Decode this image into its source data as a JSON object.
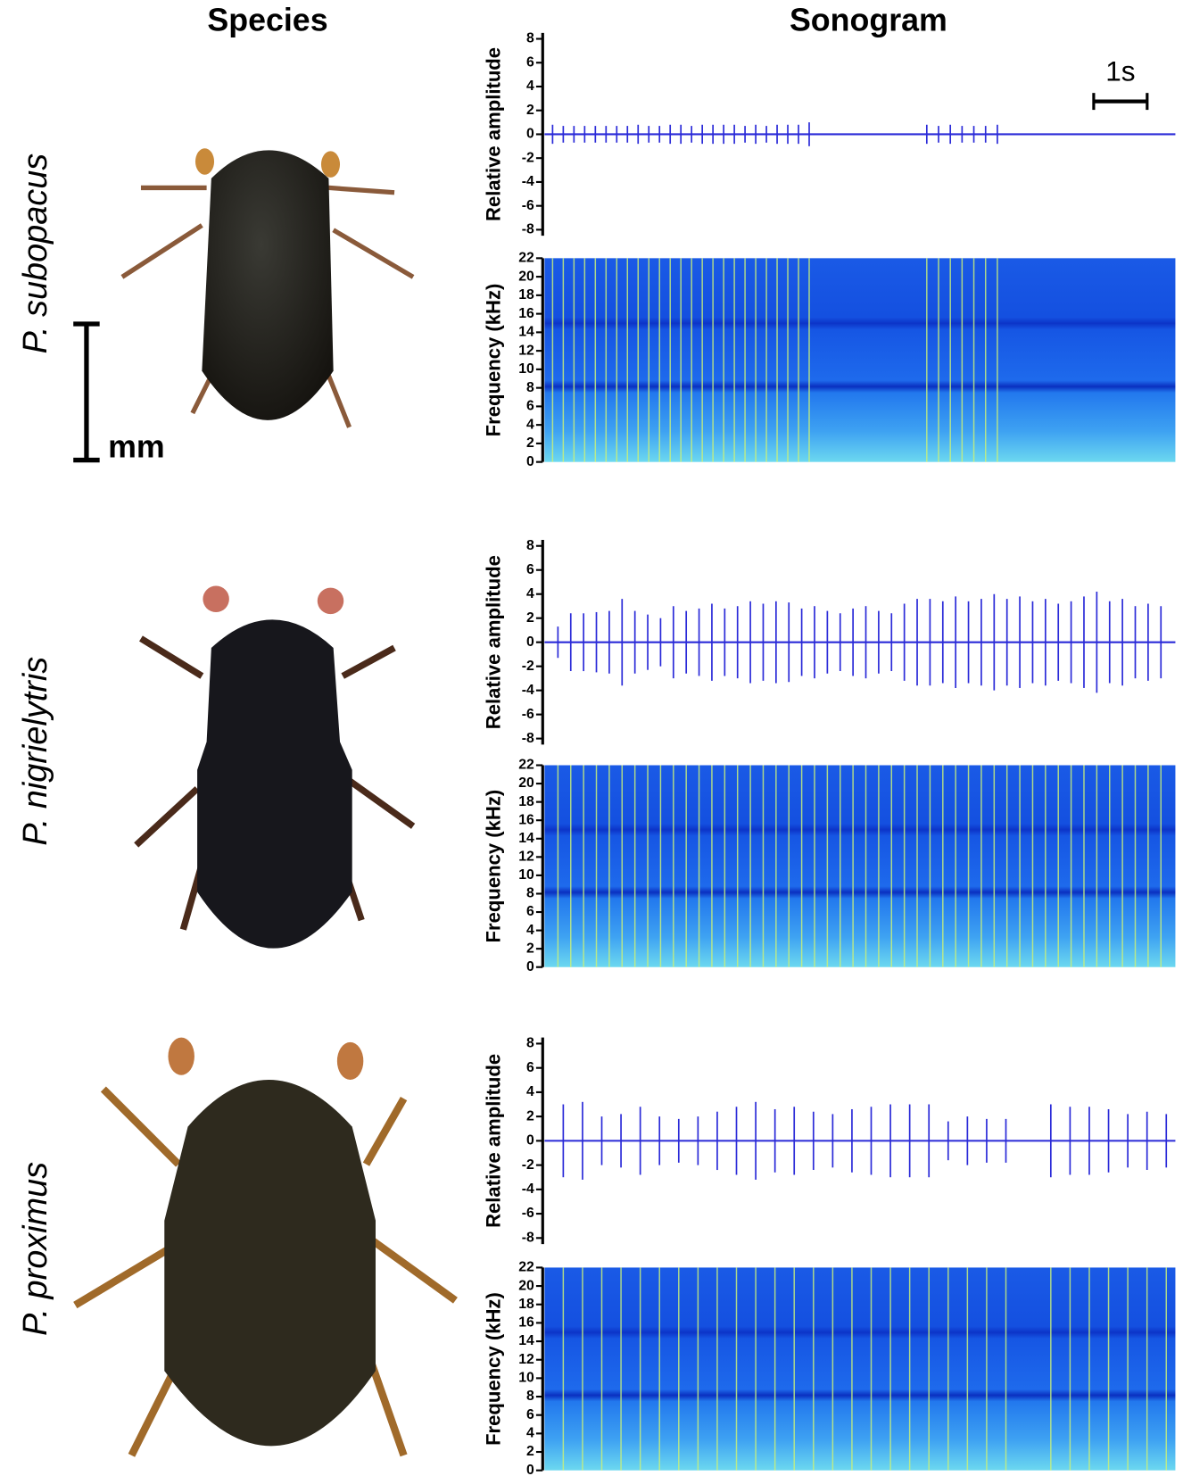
{
  "headers": {
    "species": "Species",
    "sonogram": "Sonogram"
  },
  "species": [
    "P. subopacus",
    "P. nigrielytris",
    "P. proximus"
  ],
  "length_scale": "mm",
  "chart_data": [
    {
      "type": "waveform",
      "ylabel": "Relative amplitude",
      "xlim": [
        0,
        11.8
      ],
      "ylim": [
        -8.5,
        8.5
      ],
      "yticks": [
        -8,
        -6,
        -4,
        -2,
        0,
        2,
        4,
        6,
        8
      ],
      "scale_bar": {
        "value": 1,
        "label": "1s"
      },
      "color": "#2a2ad8",
      "x": [
        0.15,
        0.35,
        0.55,
        0.75,
        0.95,
        1.15,
        1.35,
        1.55,
        1.75,
        1.95,
        2.15,
        2.35,
        2.55,
        2.75,
        2.95,
        3.15,
        3.35,
        3.55,
        3.75,
        3.95,
        4.15,
        4.35,
        4.55,
        4.75,
        4.95,
        7.15,
        7.37,
        7.59,
        7.81,
        8.03,
        8.25,
        8.47
      ],
      "values": [
        0.8,
        0.7,
        0.7,
        0.7,
        0.7,
        0.7,
        0.7,
        0.7,
        0.8,
        0.7,
        0.7,
        0.8,
        0.8,
        0.7,
        0.8,
        0.8,
        0.8,
        0.8,
        0.7,
        0.8,
        0.7,
        0.8,
        0.8,
        0.8,
        1.0,
        0.8,
        0.7,
        0.8,
        0.7,
        0.7,
        0.7,
        0.8
      ]
    },
    {
      "type": "spectrogram",
      "ylabel": "Frequency (kHz)",
      "xlim": [
        0,
        11.8
      ],
      "ylim": [
        0,
        22
      ],
      "yticks": [
        0,
        2,
        4,
        6,
        8,
        10,
        12,
        14,
        16,
        18,
        20,
        22
      ]
    },
    {
      "type": "waveform",
      "ylabel": "Relative amplitude",
      "xlim": [
        0,
        11.8
      ],
      "ylim": [
        -8.5,
        8.5
      ],
      "yticks": [
        -8,
        -6,
        -4,
        -2,
        0,
        2,
        4,
        6,
        8
      ],
      "color": "#2a2ad8",
      "x": [
        0.25,
        0.49,
        0.73,
        0.97,
        1.21,
        1.45,
        1.69,
        1.93,
        2.17,
        2.41,
        2.65,
        2.89,
        3.13,
        3.37,
        3.61,
        3.85,
        4.09,
        4.33,
        4.57,
        4.81,
        5.05,
        5.29,
        5.53,
        5.77,
        6.01,
        6.25,
        6.49,
        6.73,
        6.97,
        7.21,
        7.45,
        7.69,
        7.93,
        8.17,
        8.41,
        8.65,
        8.89,
        9.13,
        9.37,
        9.61,
        9.85,
        10.09,
        10.33,
        10.57,
        10.81,
        11.05,
        11.29,
        11.53
      ],
      "values": [
        1.3,
        2.4,
        2.4,
        2.5,
        2.6,
        3.6,
        2.6,
        2.3,
        2.0,
        3.0,
        2.6,
        2.8,
        3.2,
        2.8,
        3.0,
        3.4,
        3.2,
        3.4,
        3.3,
        2.8,
        3.0,
        2.6,
        2.4,
        2.8,
        3.0,
        2.6,
        2.4,
        3.2,
        3.6,
        3.6,
        3.4,
        3.8,
        3.4,
        3.6,
        4.0,
        3.6,
        3.8,
        3.4,
        3.6,
        3.2,
        3.4,
        3.8,
        4.2,
        3.4,
        3.6,
        3.0,
        3.2,
        3.0
      ]
    },
    {
      "type": "spectrogram",
      "ylabel": "Frequency (kHz)",
      "xlim": [
        0,
        11.8
      ],
      "ylim": [
        0,
        22
      ],
      "yticks": [
        0,
        2,
        4,
        6,
        8,
        10,
        12,
        14,
        16,
        18,
        20,
        22
      ]
    },
    {
      "type": "waveform",
      "ylabel": "Relative amplitude",
      "xlim": [
        0,
        11.8
      ],
      "ylim": [
        -8.5,
        8.5
      ],
      "yticks": [
        -8,
        -6,
        -4,
        -2,
        0,
        2,
        4,
        6,
        8
      ],
      "color": "#2a2ad8",
      "x": [
        0.35,
        0.71,
        1.07,
        1.43,
        1.79,
        2.15,
        2.51,
        2.87,
        3.23,
        3.59,
        3.95,
        4.31,
        4.67,
        5.03,
        5.39,
        5.75,
        6.11,
        6.47,
        6.83,
        7.19,
        7.55,
        7.91,
        8.27,
        8.63,
        9.47,
        9.83,
        10.19,
        10.55,
        10.91,
        11.27,
        11.63
      ],
      "values": [
        3.0,
        3.2,
        2.0,
        2.2,
        2.8,
        2.0,
        1.8,
        2.0,
        2.4,
        2.8,
        3.2,
        2.6,
        2.8,
        2.4,
        2.2,
        2.6,
        2.8,
        3.0,
        3.0,
        3.0,
        1.6,
        2.0,
        1.8,
        1.8,
        3.0,
        2.8,
        2.8,
        2.6,
        2.2,
        2.4,
        2.2
      ]
    },
    {
      "type": "spectrogram",
      "ylabel": "Frequency (kHz)",
      "xlim": [
        0,
        11.8
      ],
      "ylim": [
        0,
        22
      ],
      "yticks": [
        0,
        2,
        4,
        6,
        8,
        10,
        12,
        14,
        16,
        18,
        20,
        22
      ]
    }
  ]
}
